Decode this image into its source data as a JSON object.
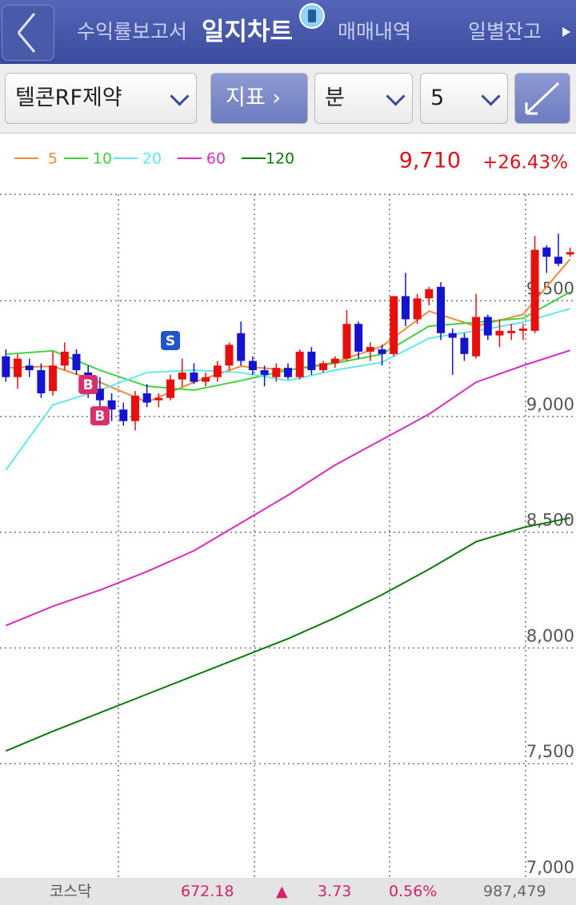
{
  "header": {
    "tabs": [
      "수익률보고서",
      "일지차트",
      "매매내역",
      "일별잔고"
    ],
    "active_tab": 1
  },
  "toolbar": {
    "stock": "텔콘RF제약",
    "indicator": "지표",
    "period": "분",
    "interval": "5"
  },
  "chart": {
    "type": "candlestick",
    "legend": [
      {
        "name": "5",
        "color": "#f08a3c"
      },
      {
        "name": "10",
        "color": "#3fd43f"
      },
      {
        "name": "20",
        "color": "#5ee8f0"
      },
      {
        "name": "60",
        "color": "#d82bc0"
      },
      {
        "name": "120",
        "color": "#0b7a0b"
      }
    ],
    "price": "9,710",
    "change": "+26.43%",
    "ylim": [
      7000,
      9960
    ],
    "yticks": [
      {
        "value": 9500,
        "label": "9,500"
      },
      {
        "value": 9000,
        "label": "9,000"
      },
      {
        "value": 8500,
        "label": "8,500"
      },
      {
        "value": 8000,
        "label": "8,000"
      },
      {
        "value": 7500,
        "label": "7,500"
      },
      {
        "value": 7000,
        "label": "7,000"
      }
    ],
    "candles": [
      [
        9260,
        9290,
        9150,
        9170
      ],
      [
        9170,
        9270,
        9120,
        9250
      ],
      [
        9220,
        9250,
        9170,
        9200
      ],
      [
        9200,
        9230,
        9080,
        9100
      ],
      [
        9110,
        9280,
        9090,
        9220
      ],
      [
        9220,
        9320,
        9200,
        9280
      ],
      [
        9270,
        9290,
        9180,
        9200
      ],
      [
        9190,
        9220,
        9080,
        9120
      ],
      [
        9120,
        9170,
        9040,
        9070
      ],
      [
        9070,
        9100,
        8980,
        9030
      ],
      [
        9030,
        9060,
        8960,
        8980
      ],
      [
        8980,
        9110,
        8940,
        9090
      ],
      [
        9100,
        9140,
        9040,
        9060
      ],
      [
        9070,
        9100,
        9040,
        9080
      ],
      [
        9080,
        9180,
        9070,
        9160
      ],
      [
        9160,
        9250,
        9130,
        9190
      ],
      [
        9190,
        9230,
        9140,
        9150
      ],
      [
        9150,
        9190,
        9130,
        9170
      ],
      [
        9170,
        9240,
        9150,
        9220
      ],
      [
        9220,
        9320,
        9200,
        9310
      ],
      [
        9360,
        9410,
        9220,
        9240
      ],
      [
        9240,
        9260,
        9180,
        9200
      ],
      [
        9200,
        9220,
        9130,
        9180
      ],
      [
        9170,
        9230,
        9150,
        9210
      ],
      [
        9210,
        9230,
        9160,
        9170
      ],
      [
        9170,
        9290,
        9160,
        9280
      ],
      [
        9280,
        9300,
        9180,
        9200
      ],
      [
        9200,
        9240,
        9190,
        9230
      ],
      [
        9230,
        9260,
        9210,
        9250
      ],
      [
        9250,
        9460,
        9240,
        9400
      ],
      [
        9400,
        9410,
        9250,
        9280
      ],
      [
        9280,
        9320,
        9240,
        9300
      ],
      [
        9290,
        9310,
        9220,
        9270
      ],
      [
        9270,
        9520,
        9260,
        9520
      ],
      [
        9520,
        9620,
        9390,
        9420
      ],
      [
        9420,
        9530,
        9400,
        9510
      ],
      [
        9510,
        9560,
        9480,
        9550
      ],
      [
        9560,
        9580,
        9330,
        9360
      ],
      [
        9360,
        9380,
        9180,
        9340
      ],
      [
        9340,
        9360,
        9240,
        9270
      ],
      [
        9260,
        9530,
        9250,
        9430
      ],
      [
        9430,
        9440,
        9330,
        9350
      ],
      [
        9350,
        9420,
        9300,
        9370
      ],
      [
        9360,
        9400,
        9330,
        9370
      ],
      [
        9370,
        9400,
        9330,
        9380
      ],
      [
        9370,
        9780,
        9360,
        9720
      ],
      [
        9730,
        9740,
        9620,
        9690
      ],
      [
        9690,
        9790,
        9650,
        9660
      ],
      [
        9700,
        9730,
        9690,
        9710
      ]
    ],
    "x": [
      0,
      4,
      8,
      12,
      16,
      20,
      24,
      28,
      32,
      36,
      40,
      44,
      48
    ],
    "series": [
      {
        "name": "5",
        "values": [
          9210,
          9217,
          9148,
          9062,
          9148,
          9217,
          9200,
          9234,
          9303,
          9455,
          9390,
          9441,
          9680
        ]
      },
      {
        "name": "10",
        "values": [
          9269,
          9284,
          9200,
          9131,
          9114,
          9155,
          9200,
          9230,
          9269,
          9390,
          9407,
          9424,
          9538
        ]
      },
      {
        "name": "20",
        "values": [
          8769,
          9050,
          9114,
          9190,
          9200,
          9190,
          9155,
          9200,
          9234,
          9338,
          9370,
          9407,
          9466
        ]
      },
      {
        "name": "60",
        "values": [
          8097,
          8180,
          8250,
          8330,
          8420,
          8540,
          8660,
          8790,
          8900,
          9010,
          9148,
          9220,
          9286
        ]
      },
      {
        "name": "120",
        "values": [
          7555,
          7640,
          7720,
          7800,
          7880,
          7960,
          8040,
          8130,
          8230,
          8340,
          8459,
          8520,
          8562
        ]
      }
    ],
    "signals": [
      {
        "label": "B",
        "index": 7,
        "price": 9138
      },
      {
        "label": "B",
        "index": 8,
        "price": 9003
      },
      {
        "label": "S",
        "index": 14,
        "price": 9328
      }
    ]
  },
  "footer": {
    "market": "코스닥",
    "index": "672.18",
    "arrow": "▲",
    "change": "3.73",
    "percent": "0.56%",
    "volume": "987,479"
  }
}
